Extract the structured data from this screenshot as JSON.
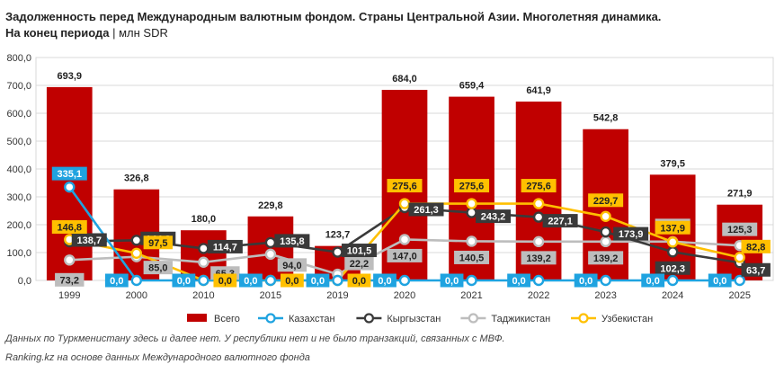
{
  "header": {
    "title_line1": "Задолженность перед Международным валютным фондом. Страны Центральной Азии. Многолетняя динамика.",
    "title_line2": "На конец периода",
    "title_sep": "|",
    "title_unit": "млн SDR"
  },
  "footer": {
    "note": "Данных по Туркменистану здесь и далее нет. У республики нет и не было транзакций, связанных с МВФ.",
    "source": "Ranking.kz на основе данных Международного валютного фонда"
  },
  "colors": {
    "total": "#C00000",
    "kazakhstan": "#1FA3E0",
    "kyrgyzstan": "#3A3A3A",
    "tajikistan": "#BDBDBD",
    "uzbekistan": "#FFC000"
  },
  "chart_data": {
    "type": "bar",
    "categories": [
      "1999",
      "2000",
      "2010",
      "2015",
      "2019",
      "2020",
      "2021",
      "2022",
      "2023",
      "2024",
      "2025"
    ],
    "ylim": [
      0,
      800
    ],
    "yticks": [
      "0,0",
      "100,0",
      "200,0",
      "300,0",
      "400,0",
      "500,0",
      "600,0",
      "700,0",
      "800,0"
    ],
    "ytick_values": [
      0,
      100,
      200,
      300,
      400,
      500,
      600,
      700,
      800
    ],
    "grid": true,
    "legend_position": "bottom",
    "series": [
      {
        "name": "Всего",
        "kind": "bar",
        "color": "#C00000",
        "values": [
          693.9,
          326.8,
          180.0,
          229.8,
          123.7,
          684.0,
          659.4,
          641.9,
          542.8,
          379.5,
          271.9
        ],
        "labels": [
          "693,9",
          "326,8",
          "180,0",
          "229,8",
          "123,7",
          "684,0",
          "659,4",
          "641,9",
          "542,8",
          "379,5",
          "271,9"
        ]
      },
      {
        "name": "Казахстан",
        "kind": "line",
        "color": "#1FA3E0",
        "values": [
          335.1,
          0.0,
          0.0,
          0.0,
          0.0,
          0.0,
          0.0,
          0.0,
          0.0,
          0.0,
          0.0
        ],
        "labels": [
          "335,1",
          "0,0",
          "0,0",
          "0,0",
          "0,0",
          "0,0",
          "0,0",
          "0,0",
          "0,0",
          "0,0",
          "0,0"
        ]
      },
      {
        "name": "Кыргызстан",
        "kind": "line",
        "color": "#3A3A3A",
        "values": [
          138.7,
          144.3,
          114.7,
          135.8,
          101.5,
          261.3,
          243.2,
          227.1,
          173.9,
          102.3,
          63.7
        ],
        "labels": [
          "138,7",
          "144,3",
          "114,7",
          "135,8",
          "101,5",
          "261,3",
          "243,2",
          "227,1",
          "173,9",
          "102,3",
          "63,7"
        ]
      },
      {
        "name": "Таджикистан",
        "kind": "line",
        "color": "#BDBDBD",
        "values": [
          73.2,
          85.0,
          65.3,
          94.0,
          22.2,
          147.0,
          140.5,
          139.2,
          139.2,
          139.2,
          125.3
        ],
        "labels": [
          "73,2",
          "85,0",
          "65,3",
          "94,0",
          "22,2",
          "147,0",
          "140,5",
          "139,2",
          "139,2",
          "139,2",
          "125,3"
        ]
      },
      {
        "name": "Узбекистан",
        "kind": "line",
        "color": "#FFC000",
        "values": [
          146.8,
          97.5,
          0.0,
          0.0,
          0.0,
          275.6,
          275.6,
          275.6,
          229.7,
          137.9,
          82.8
        ],
        "labels": [
          "146,8",
          "97,5",
          "0,0",
          "0,0",
          "0,0",
          "275,6",
          "275,6",
          "275,6",
          "229,7",
          "137,9",
          "82,8"
        ]
      }
    ]
  }
}
